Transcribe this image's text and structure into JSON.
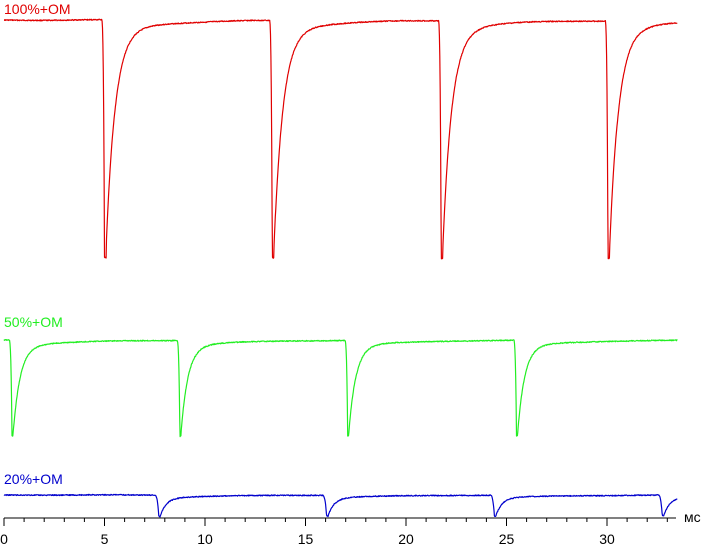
{
  "chart_data": {
    "type": "line",
    "xlabel": "мс",
    "xlim": [
      0,
      33.5
    ],
    "x_ticks": [
      0,
      5,
      10,
      15,
      20,
      25,
      30
    ],
    "x_tick_labels": [
      "0",
      "5",
      "10",
      "15",
      "20",
      "25",
      "30"
    ],
    "grid": false,
    "legend": "none",
    "series": [
      {
        "name": "100%+OM",
        "color": "#e00000",
        "period_ms": 8.33,
        "pulse_times_ms": [
          5.0,
          13.35,
          21.75,
          30.05
        ],
        "level_baseline": 1.0,
        "level_min": 0.0
      },
      {
        "name": "50%+OM",
        "color": "#22ee22",
        "period_ms": 8.33,
        "pulse_times_ms": [
          0.4,
          8.75,
          17.1,
          25.5
        ],
        "level_baseline": 1.0,
        "level_min": 0.0
      },
      {
        "name": "20%+OM",
        "color": "#0000cc",
        "period_ms": 8.33,
        "pulse_times_ms": [
          7.7,
          16.05,
          24.4,
          32.75
        ],
        "level_baseline": 1.0,
        "level_min": 0.0
      }
    ]
  }
}
